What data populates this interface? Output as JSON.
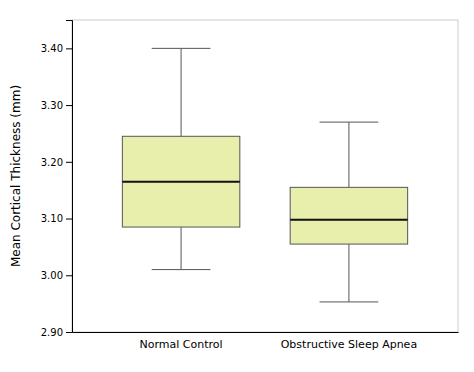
{
  "chart_data": {
    "type": "box",
    "categories": [
      "Normal Control",
      "Obstructive Sleep Apnea"
    ],
    "boxes": [
      {
        "whisker_low": 3.01,
        "q1": 3.085,
        "median": 3.165,
        "q3": 3.245,
        "whisker_high": 3.4
      },
      {
        "whisker_low": 2.953,
        "q1": 3.055,
        "median": 3.098,
        "q3": 3.155,
        "whisker_high": 3.27
      }
    ],
    "ylabel": "Mean Cortical Thickness (mm)",
    "ylim": [
      2.9,
      3.45
    ],
    "yticks": [
      {
        "value": 2.9,
        "label": "2.90"
      },
      {
        "value": 3.0,
        "label": "3.00"
      },
      {
        "value": 3.1,
        "label": "3.10"
      },
      {
        "value": 3.2,
        "label": "3.20"
      },
      {
        "value": 3.3,
        "label": "3.30"
      },
      {
        "value": 3.4,
        "label": "3.40"
      }
    ],
    "color": "#e8eeac",
    "grid": false
  }
}
